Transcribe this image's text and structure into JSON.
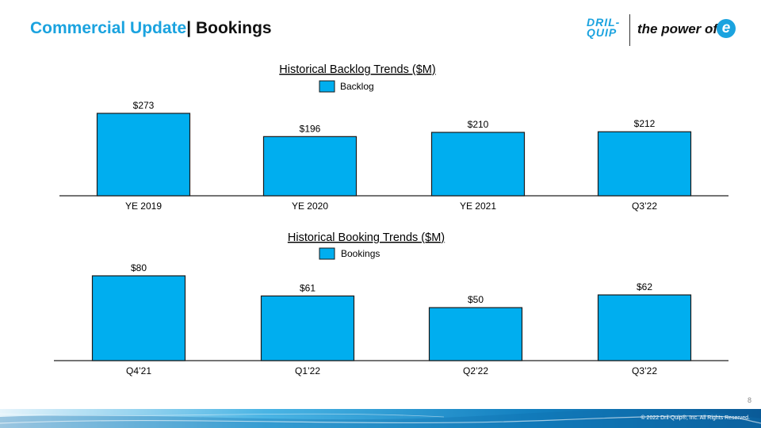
{
  "header": {
    "title_part1": "Commercial Update",
    "title_part2": "| Bookings"
  },
  "logo": {
    "mark_line1": "DRIL-",
    "mark_line2": "QUIP",
    "tagline": "the power of",
    "e_letter": "e"
  },
  "colors": {
    "accent": "#1ba3df",
    "bar_fill": "#00aeef",
    "bar_stroke": "#1a1a1a"
  },
  "chart_data": [
    {
      "type": "bar",
      "title": "Historical Backlog Trends ($M)",
      "legend": "Backlog",
      "categories": [
        "YE 2019",
        "YE 2020",
        "YE 2021",
        "Q3’22"
      ],
      "values": [
        273,
        196,
        210,
        212
      ],
      "labels": [
        "$273",
        "$196",
        "$210",
        "$212"
      ],
      "ylim": [
        0,
        273
      ],
      "grid": false,
      "legend_position": "top-center"
    },
    {
      "type": "bar",
      "title": "Historical Booking Trends ($M)",
      "legend": "Bookings",
      "categories": [
        "Q4’21",
        "Q1’22",
        "Q2’22",
        "Q3’22"
      ],
      "values": [
        80,
        61,
        50,
        62
      ],
      "labels": [
        "$80",
        "$61",
        "$50",
        "$62"
      ],
      "ylim": [
        0,
        80
      ],
      "grid": false,
      "legend_position": "top-center"
    }
  ],
  "footer": {
    "page_number": "8",
    "copyright": "© 2022 Dril-Quip®, Inc. All Rights Reserved."
  }
}
